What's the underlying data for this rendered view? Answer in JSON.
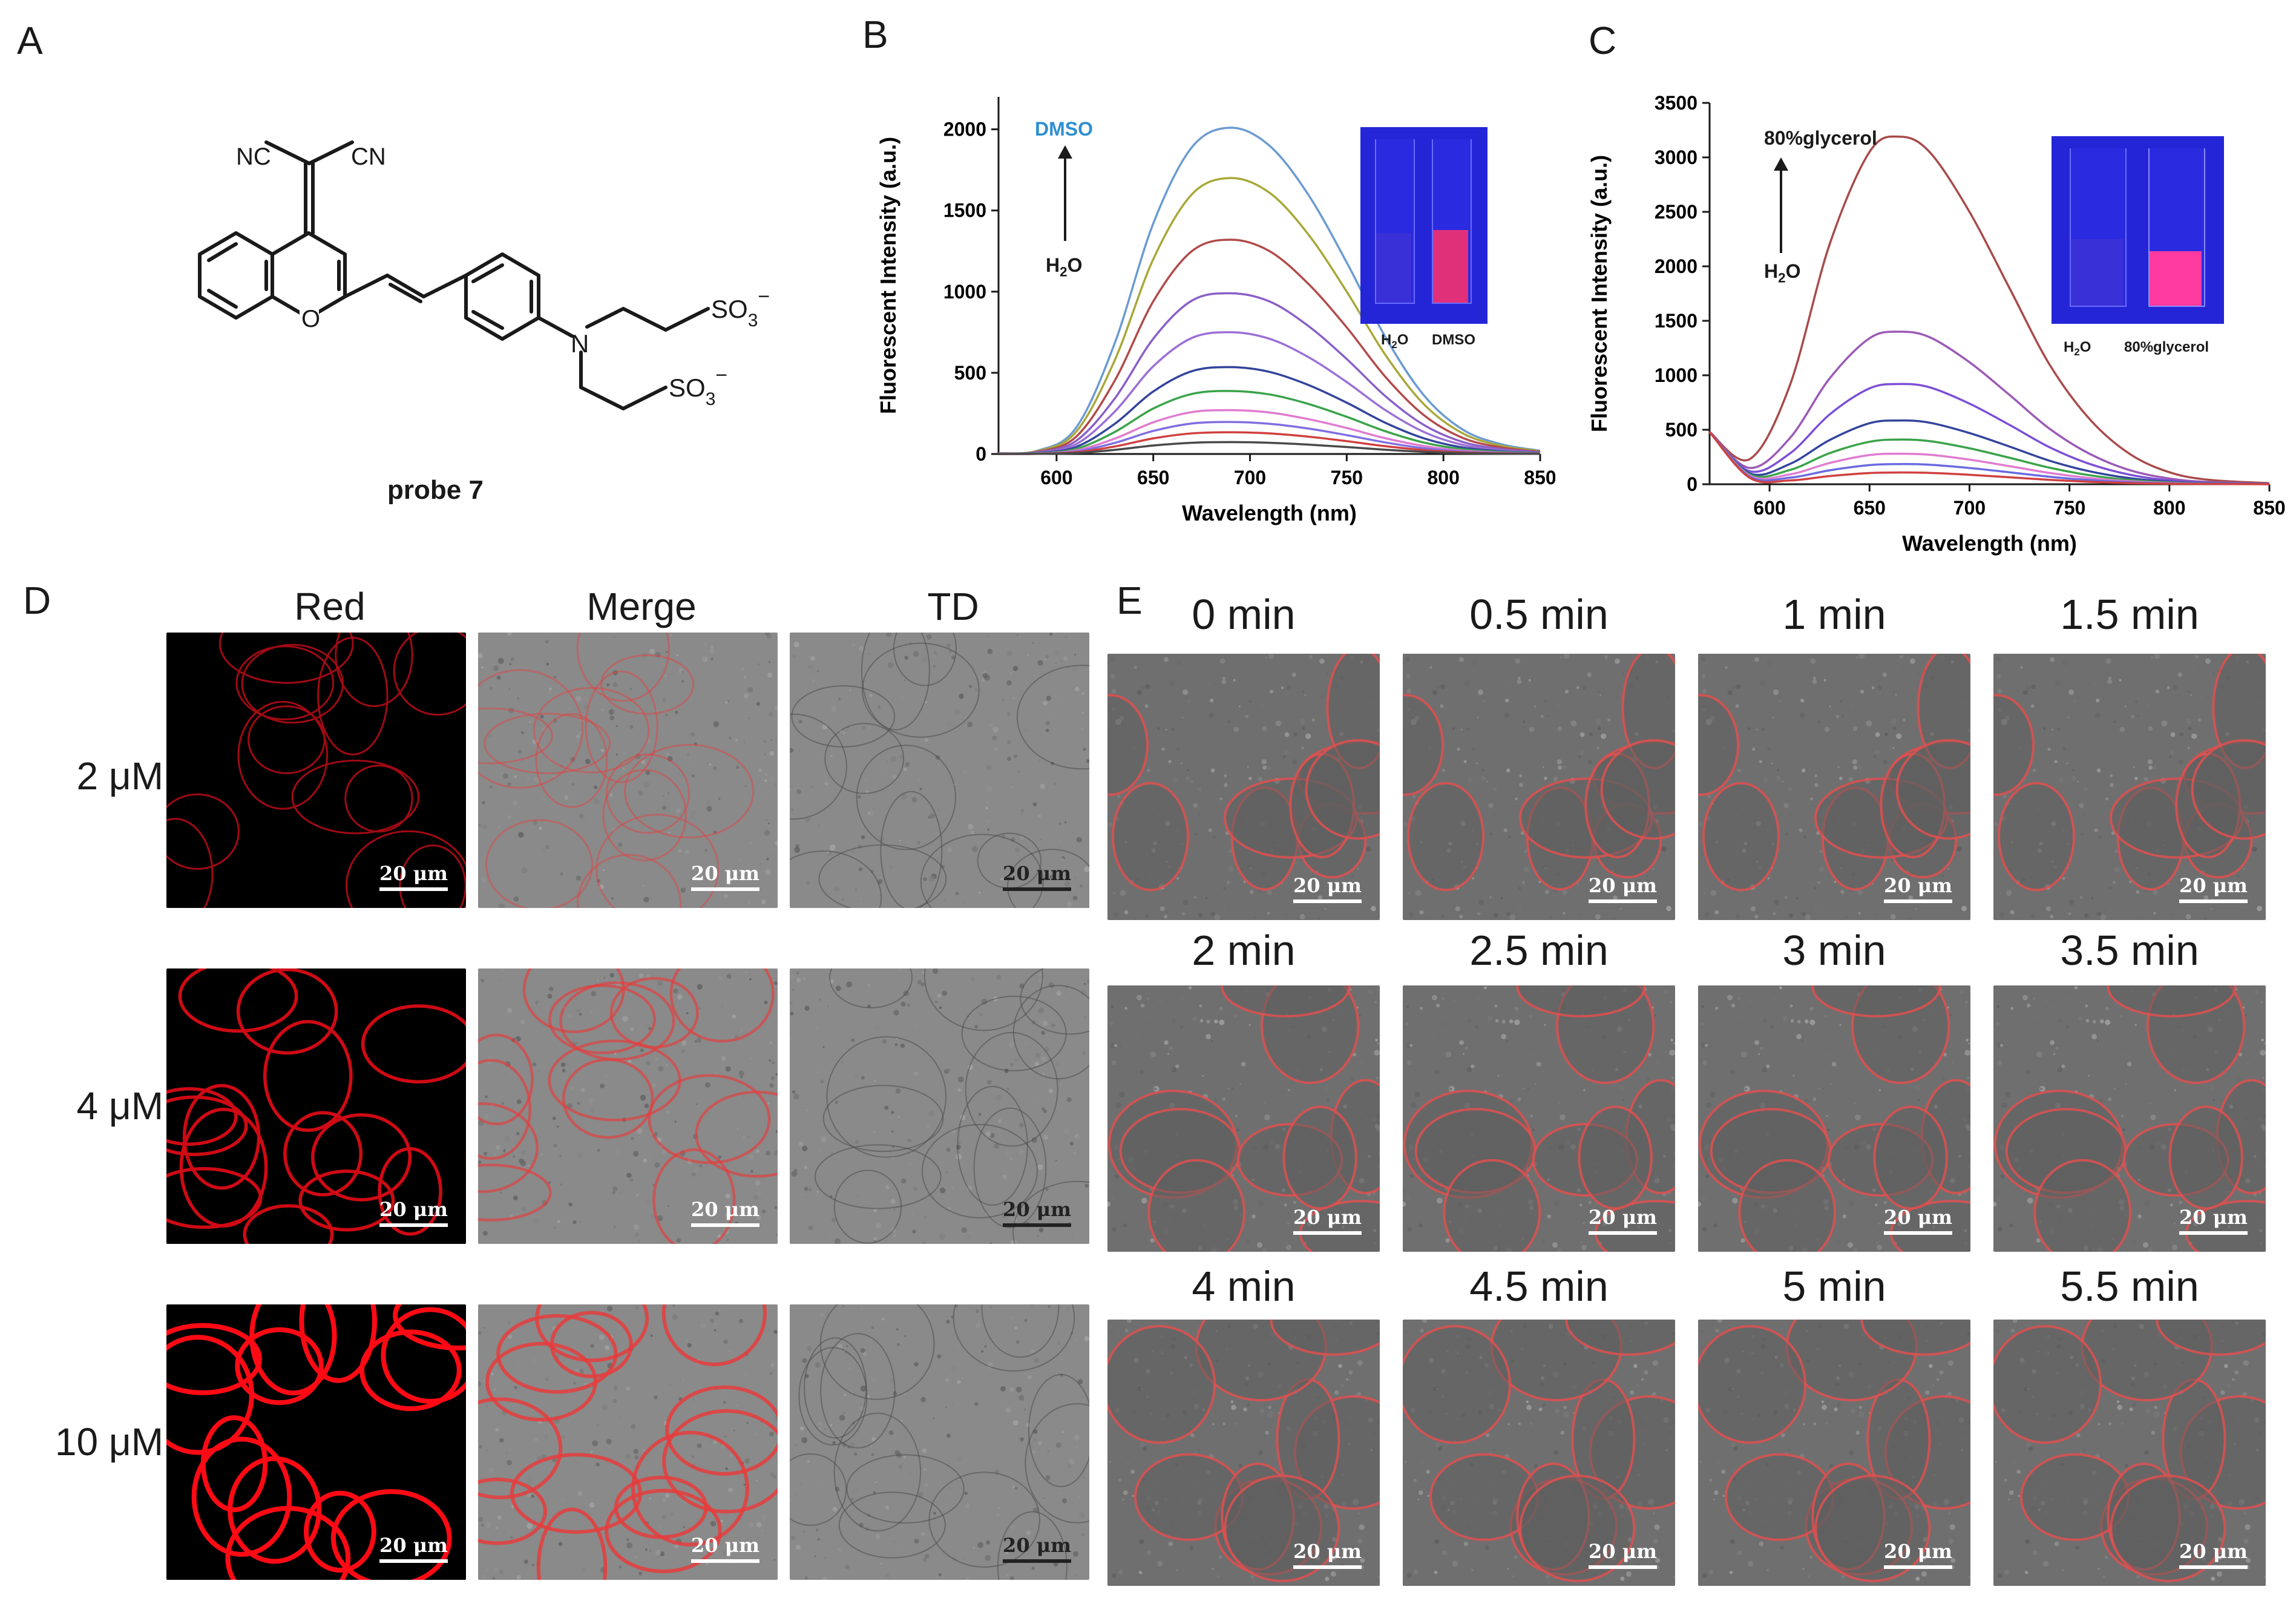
{
  "panels": {
    "A": {
      "letter": "A",
      "caption": "probe 7",
      "labels": {
        "nc1": "NC",
        "cn1": "CN",
        "o": "O",
        "n": "N",
        "so3_top": "SO",
        "so3_top_sub": "3",
        "so3_top_sup": "−",
        "so3_bot": "SO",
        "so3_bot_sub": "3",
        "so3_bot_sup": "−"
      }
    },
    "B": {
      "letter": "B",
      "top_label": "DMSO",
      "top_label_color": "#2f8fd0",
      "bottom_label": "H2O",
      "inset_labels": [
        "H2O",
        "DMSO"
      ]
    },
    "C": {
      "letter": "C",
      "top_label": "80%glycerol",
      "bottom_label": "H2O",
      "inset_labels": [
        "H2O",
        "80%glycerol"
      ]
    },
    "D": {
      "letter": "D",
      "columns": [
        "Red",
        "Merge",
        "TD"
      ],
      "rows": [
        "2 μM",
        "4 μM",
        "10 μM"
      ],
      "scale": "20 μm"
    },
    "E": {
      "letter": "E",
      "times": [
        "0 min",
        "0.5 min",
        "1 min",
        "1.5 min",
        "2 min",
        "2.5 min",
        "3 min",
        "3.5 min",
        "4 min",
        "4.5 min",
        "5 min",
        "5.5 min"
      ],
      "scale": "20 μm"
    }
  },
  "chart_data": [
    {
      "type": "line",
      "panel": "B",
      "xlabel": "Wavelength (nm)",
      "ylabel": "Fluorescent Intensity (a.u.)",
      "xlim": [
        570,
        850
      ],
      "ylim": [
        0,
        2200
      ],
      "xticks": [
        600,
        650,
        700,
        750,
        800,
        850
      ],
      "yticks": [
        0,
        500,
        1000,
        1500,
        2000
      ],
      "x": [
        570,
        590,
        610,
        630,
        650,
        670,
        690,
        710,
        730,
        750,
        770,
        790,
        810,
        830,
        850
      ],
      "series": [
        {
          "color": "#6b9bd2",
          "values": [
            5,
            20,
            160,
            680,
            1420,
            1890,
            2010,
            1900,
            1600,
            1180,
            720,
            360,
            150,
            60,
            20
          ]
        },
        {
          "color": "#a8a83a",
          "values": [
            4,
            17,
            135,
            575,
            1200,
            1600,
            1700,
            1610,
            1355,
            1000,
            610,
            305,
            127,
            50,
            17
          ]
        },
        {
          "color": "#b24a4a",
          "values": [
            3,
            13,
            105,
            450,
            940,
            1250,
            1320,
            1250,
            1050,
            780,
            475,
            238,
            99,
            40,
            13
          ]
        },
        {
          "color": "#8a5fc8",
          "values": [
            2,
            10,
            80,
            340,
            710,
            945,
            990,
            940,
            790,
            585,
            356,
            178,
            74,
            30,
            10
          ]
        },
        {
          "color": "#9b6fd6",
          "values": [
            2,
            8,
            60,
            260,
            540,
            715,
            750,
            710,
            598,
            443,
            270,
            135,
            56,
            22,
            8
          ]
        },
        {
          "color": "#34449c",
          "values": [
            1,
            6,
            43,
            185,
            385,
            510,
            535,
            506,
            426,
            316,
            192,
            96,
            40,
            16,
            6
          ]
        },
        {
          "color": "#3aa34a",
          "values": [
            1,
            4,
            31,
            135,
            280,
            370,
            388,
            367,
            309,
            229,
            140,
            70,
            29,
            12,
            4
          ]
        },
        {
          "color": "#e07bd0",
          "values": [
            1,
            3,
            22,
            94,
            195,
            258,
            270,
            256,
            215,
            160,
            97,
            49,
            20,
            8,
            3
          ]
        },
        {
          "color": "#7f6fe0",
          "values": [
            0,
            2,
            16,
            68,
            142,
            188,
            197,
            186,
            157,
            116,
            71,
            35,
            15,
            6,
            2
          ]
        },
        {
          "color": "#d04040",
          "values": [
            0,
            1,
            11,
            46,
            96,
            127,
            134,
            127,
            107,
            79,
            48,
            24,
            10,
            4,
            1
          ]
        },
        {
          "color": "#4a4a4a",
          "values": [
            0,
            1,
            6,
            25,
            52,
            69,
            73,
            69,
            58,
            43,
            26,
            13,
            5,
            2,
            1
          ]
        }
      ]
    },
    {
      "type": "line",
      "panel": "C",
      "xlabel": "Wavelength (nm)",
      "ylabel": "Fluorescent Intensity (a.u.)",
      "xlim": [
        570,
        850
      ],
      "ylim": [
        0,
        3500
      ],
      "xticks": [
        600,
        650,
        700,
        750,
        800,
        850
      ],
      "yticks": [
        0,
        500,
        1000,
        1500,
        2000,
        2500,
        3000,
        3500
      ],
      "x": [
        570,
        590,
        610,
        630,
        650,
        665,
        680,
        700,
        720,
        740,
        760,
        780,
        800,
        820,
        850
      ],
      "series": [
        {
          "color": "#a84a4a",
          "values": [
            480,
            230,
            900,
            2200,
            3050,
            3190,
            3050,
            2500,
            1800,
            1100,
            600,
            280,
            110,
            40,
            10
          ]
        },
        {
          "color": "#9b59b6",
          "values": [
            480,
            150,
            420,
            970,
            1340,
            1400,
            1350,
            1120,
            820,
            510,
            280,
            130,
            52,
            20,
            5
          ]
        },
        {
          "color": "#7b4fd6",
          "values": [
            480,
            120,
            280,
            640,
            880,
            920,
            890,
            740,
            545,
            340,
            187,
            88,
            35,
            13,
            4
          ]
        },
        {
          "color": "#34449c",
          "values": [
            480,
            100,
            185,
            405,
            560,
            585,
            565,
            470,
            346,
            216,
            119,
            56,
            22,
            8,
            2
          ]
        },
        {
          "color": "#3aa34a",
          "values": [
            480,
            90,
            130,
            285,
            390,
            410,
            396,
            330,
            243,
            152,
            83,
            39,
            16,
            6,
            2
          ]
        },
        {
          "color": "#e07bd0",
          "values": [
            480,
            80,
            90,
            195,
            268,
            280,
            271,
            226,
            166,
            104,
            57,
            27,
            11,
            4,
            1
          ]
        },
        {
          "color": "#6a6ae0",
          "values": [
            480,
            70,
            60,
            128,
            176,
            185,
            179,
            149,
            110,
            69,
            38,
            18,
            7,
            3,
            1
          ]
        },
        {
          "color": "#d04040",
          "values": [
            480,
            60,
            35,
            75,
            103,
            108,
            104,
            87,
            64,
            40,
            22,
            10,
            4,
            2,
            1
          ]
        }
      ]
    }
  ]
}
